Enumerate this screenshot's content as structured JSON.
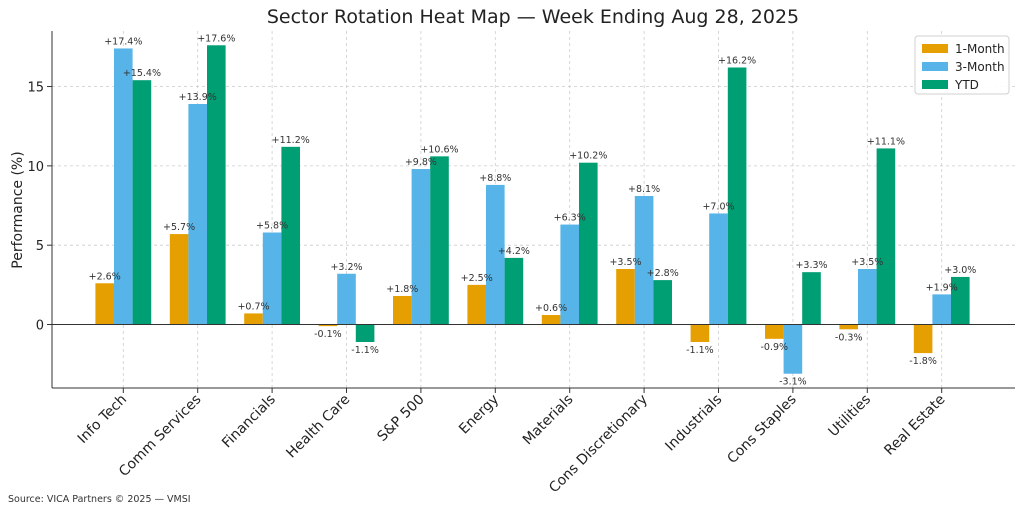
{
  "chart_data": {
    "type": "bar",
    "title": "Sector Rotation Heat Map — Week Ending Aug 28, 2025",
    "xlabel": "",
    "ylabel": "Performance (%)",
    "ylim": [
      -4,
      18.5
    ],
    "yticks": [
      0,
      5,
      10,
      15
    ],
    "grid": true,
    "legend_position": "top-right",
    "categories": [
      "Info Tech",
      "Comm Services",
      "Financials",
      "Health Care",
      "S&P 500",
      "Energy",
      "Materials",
      "Cons Discretionary",
      "Industrials",
      "Cons Staples",
      "Utilities",
      "Real Estate"
    ],
    "series": [
      {
        "name": "1-Month",
        "color": "#E69F00",
        "values": [
          2.6,
          5.7,
          0.7,
          -0.1,
          1.8,
          2.5,
          0.6,
          3.5,
          -1.1,
          -0.9,
          -0.3,
          -1.8
        ]
      },
      {
        "name": "3-Month",
        "color": "#56B4E9",
        "values": [
          17.4,
          13.9,
          5.8,
          3.2,
          9.8,
          8.8,
          6.3,
          8.1,
          7.0,
          -3.1,
          3.5,
          1.9
        ]
      },
      {
        "name": "YTD",
        "color": "#009E73",
        "values": [
          15.4,
          17.6,
          11.2,
          -1.1,
          10.6,
          4.2,
          10.2,
          2.8,
          16.2,
          3.3,
          11.1,
          3.0
        ]
      }
    ]
  },
  "footer": {
    "source": "Source: VICA Partners © 2025 — VMSI"
  }
}
